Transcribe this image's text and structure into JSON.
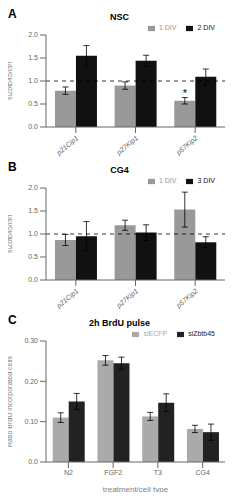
{
  "chart_data": [
    {
      "type": "bar",
      "panel_label": "A",
      "title": "NSC",
      "categories": [
        "p21Cip1",
        "p27Kip1",
        "p57Kip2"
      ],
      "series": [
        {
          "name": "1 DIV",
          "color": "#999999",
          "values": [
            0.79,
            0.9,
            0.57
          ],
          "errors": [
            0.08,
            0.08,
            0.07
          ]
        },
        {
          "name": "2 DIV",
          "color": "#111111",
          "values": [
            1.55,
            1.44,
            1.09
          ],
          "errors": [
            0.22,
            0.12,
            0.17
          ]
        }
      ],
      "ylabel": "siZbtb45/ctrl",
      "ylim": [
        0.0,
        2.0
      ],
      "yticks": [
        {
          "value": 0.0,
          "label": "0.0"
        },
        0.5,
        {
          "value": 1.0,
          "label": "1.0"
        },
        1.5,
        {
          "value": 2.0,
          "label": "2.0"
        }
      ],
      "legend": "upper right",
      "reference_line": 1.0,
      "annotations": [
        {
          "text": "*",
          "category": "p57Kip2",
          "series": "1 DIV"
        }
      ]
    },
    {
      "type": "bar",
      "panel_label": "B",
      "title": "CG4",
      "categories": [
        "p21Cip1",
        "p27Kip1",
        "p57Kip2"
      ],
      "series": [
        {
          "name": "1 DIV",
          "color": "#999999",
          "values": [
            0.87,
            1.19,
            1.53
          ],
          "errors": [
            0.12,
            0.11,
            0.38
          ]
        },
        {
          "name": "3 DIV",
          "color": "#111111",
          "values": [
            0.95,
            1.03,
            0.82
          ],
          "errors": [
            0.32,
            0.17,
            0.12
          ]
        }
      ],
      "ylabel": "siZbtb45/ctrl",
      "ylim": [
        0.0,
        2.0
      ],
      "yticks": [
        {
          "value": 0.0,
          "label": "0.0"
        },
        0.5,
        {
          "value": 1.0,
          "label": "1.0"
        },
        1.5,
        {
          "value": 2.0,
          "label": "2.0"
        }
      ],
      "legend": "upper right",
      "reference_line": 1.0
    },
    {
      "type": "bar",
      "panel_label": "C",
      "title": "2h BrdU pulse",
      "categories": [
        "N2",
        "FGF2",
        "T3",
        "CG4"
      ],
      "series": [
        {
          "name": "siECFP",
          "color": "#aaaaaa",
          "values": [
            0.11,
            0.252,
            0.113,
            0.082
          ],
          "errors": [
            0.012,
            0.012,
            0.01,
            0.009
          ]
        },
        {
          "name": "siZbtb45",
          "color": "#222222",
          "values": [
            0.15,
            0.245,
            0.147,
            0.074
          ],
          "errors": [
            0.02,
            0.015,
            0.022,
            0.02
          ]
        }
      ],
      "ylabel": "Ratio BrdU incorporated cells",
      "xlabel": "treatment/cell type",
      "ylim": [
        0.0,
        0.3
      ],
      "yticks": [
        {
          "value": 0.0,
          "label": "0.0"
        },
        {
          "value": 0.1,
          "label": "0.10"
        },
        {
          "value": 0.2,
          "label": "0.20"
        },
        {
          "value": 0.3,
          "label": "0.30"
        }
      ],
      "legend": "upper right"
    }
  ]
}
